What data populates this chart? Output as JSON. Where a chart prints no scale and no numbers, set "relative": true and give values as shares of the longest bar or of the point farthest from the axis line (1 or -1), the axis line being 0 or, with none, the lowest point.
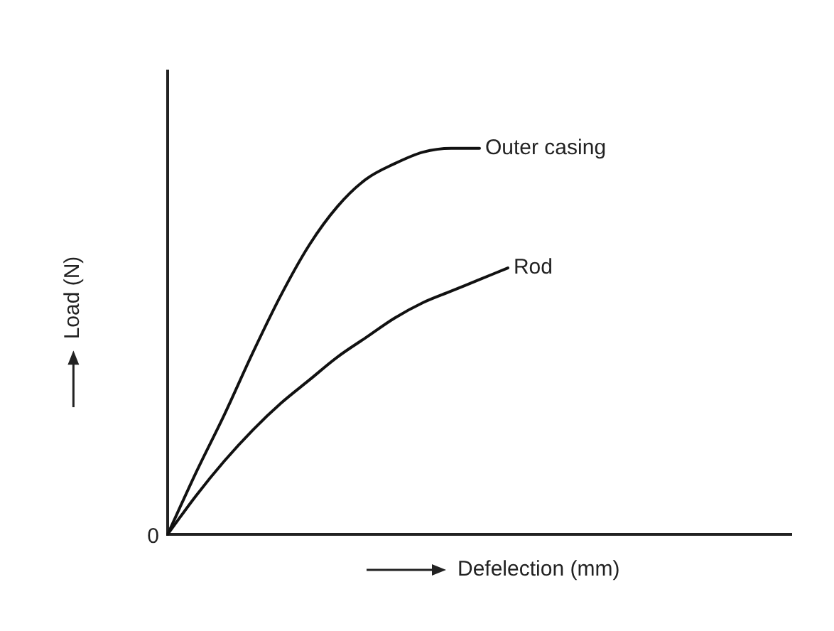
{
  "chart_data": {
    "type": "line",
    "xlabel": "Defelection (mm)",
    "ylabel": "Load (N)",
    "relative": true,
    "annotations": [
      "0"
    ],
    "categories": [
      null,
      null,
      null,
      null,
      null,
      null,
      null,
      null,
      null,
      null,
      null,
      null,
      null,
      null,
      null,
      null,
      null,
      null,
      null,
      null,
      null,
      null,
      null
    ],
    "series": [
      {
        "name": "Outer casing",
        "color": "#111111",
        "values": [
          0,
          0.16,
          0.31,
          0.47,
          0.62,
          0.75,
          0.85,
          0.92,
          0.96,
          0.99,
          1.0,
          1.0,
          null,
          null,
          null,
          null,
          null,
          null,
          null,
          null,
          null,
          null,
          null
        ]
      },
      {
        "name": "Rod",
        "color": "#111111",
        "values": [
          0,
          0.1,
          0.19,
          0.27,
          0.34,
          0.4,
          0.46,
          0.51,
          0.56,
          0.6,
          0.63,
          0.66,
          0.69,
          null,
          null,
          null,
          null,
          null,
          null,
          null,
          null,
          null,
          null
        ]
      }
    ]
  }
}
